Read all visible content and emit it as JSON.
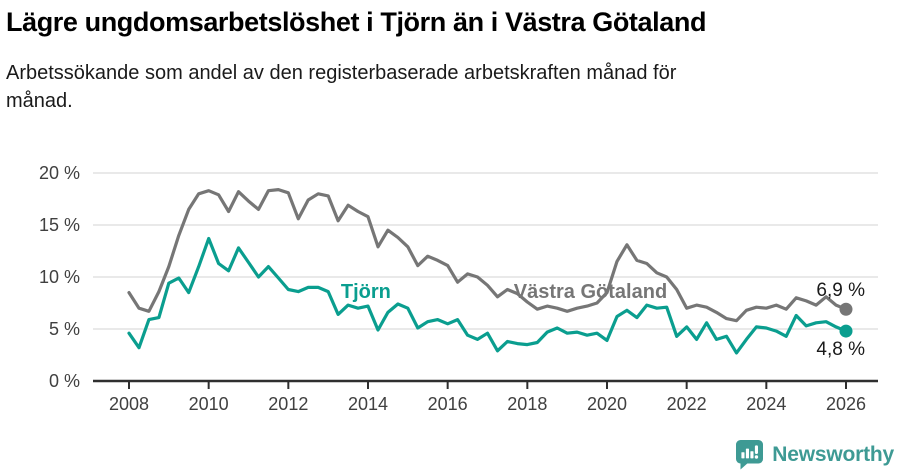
{
  "header": {
    "title": "Lägre ungdomsarbetslöshet i Tjörn än i Västra Götaland",
    "subtitle": "Arbetssökande som andel av den registerbaserade arbetskraften månad för månad.",
    "subtitle_line1": "Arbetssökande som andel av den registerbaserade arbetskraften månad för",
    "subtitle_line2": "månad."
  },
  "footer": {
    "brand": "Newsworthy",
    "brand_color": "#3e9a94",
    "logo_icon": "speech-bubble-bar-chart-icon"
  },
  "colors": {
    "tjorn": "#0a9e8f",
    "vastra_gotaland": "#767676",
    "grid": "#dcdcdc",
    "axis": "#2f2f2f",
    "tick_text": "#404040",
    "value_text": "#1a1a1a"
  },
  "chart_data": {
    "type": "line",
    "x_start": 2008,
    "x_step": 0.25,
    "x_ticks": [
      2008,
      2010,
      2012,
      2014,
      2016,
      2018,
      2020,
      2022,
      2024,
      2026
    ],
    "y_ticks": [
      0,
      5,
      10,
      15,
      20
    ],
    "y_tick_suffix": " %",
    "ylim": [
      0,
      20
    ],
    "grid": "horizontal",
    "legend_position": "inline-labels",
    "series": [
      {
        "name": "Västra Götaland",
        "slug": "vastra-gotaland",
        "color": "#767676",
        "end_label": "6,9 %",
        "end_label_position": "above",
        "label": {
          "x": 2017.66,
          "y": 8.0
        },
        "values": [
          8.5,
          7.0,
          6.7,
          8.6,
          11.0,
          14.0,
          16.5,
          18.0,
          18.3,
          17.9,
          16.3,
          18.2,
          17.3,
          16.5,
          18.3,
          18.4,
          18.1,
          15.6,
          17.4,
          18.0,
          17.8,
          15.4,
          16.9,
          16.3,
          15.8,
          12.9,
          14.5,
          13.8,
          12.9,
          11.1,
          12.0,
          11.6,
          11.1,
          9.5,
          10.3,
          10.0,
          9.2,
          8.1,
          8.8,
          8.4,
          7.6,
          6.9,
          7.2,
          7.0,
          6.7,
          7.0,
          7.2,
          7.5,
          8.5,
          11.5,
          13.1,
          11.6,
          11.3,
          10.4,
          10.0,
          8.8,
          7.0,
          7.3,
          7.1,
          6.6,
          6.0,
          5.8,
          6.8,
          7.1,
          7.0,
          7.3,
          6.9,
          8.0,
          7.7,
          7.3,
          8.1,
          7.3,
          6.9
        ]
      },
      {
        "name": "Tjörn",
        "slug": "tjorn",
        "color": "#0a9e8f",
        "end_label": "4,8 %",
        "end_label_position": "below",
        "label": {
          "x": 2013.32,
          "y": 8.0
        },
        "values": [
          4.6,
          3.2,
          5.9,
          6.1,
          9.4,
          9.9,
          8.5,
          11.0,
          13.7,
          11.3,
          10.6,
          12.8,
          11.4,
          10.0,
          11.0,
          9.9,
          8.8,
          8.6,
          9.0,
          9.0,
          8.6,
          6.4,
          7.3,
          7.0,
          7.2,
          4.9,
          6.6,
          7.4,
          7.0,
          5.1,
          5.7,
          5.9,
          5.5,
          5.9,
          4.4,
          4.0,
          4.6,
          2.9,
          3.8,
          3.6,
          3.5,
          3.7,
          4.7,
          5.1,
          4.6,
          4.7,
          4.4,
          4.6,
          3.9,
          6.2,
          6.8,
          6.1,
          7.3,
          7.0,
          7.1,
          4.3,
          5.2,
          4.0,
          5.6,
          4.0,
          4.3,
          2.7,
          4.0,
          5.2,
          5.1,
          4.8,
          4.3,
          6.3,
          5.3,
          5.6,
          5.7,
          5.2,
          4.8
        ]
      }
    ]
  }
}
